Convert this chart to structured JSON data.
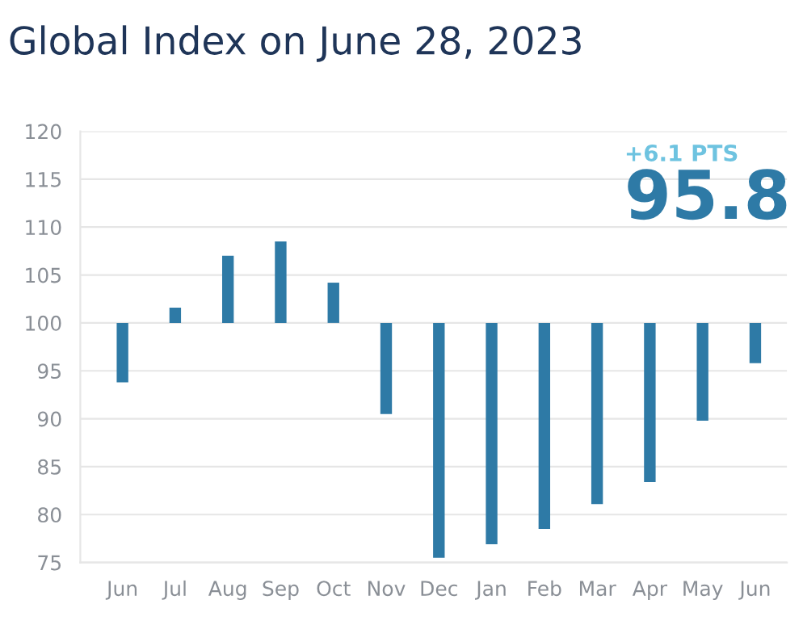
{
  "chart_data": {
    "type": "bar",
    "title": "Global Index on June 28, 2023",
    "categories": [
      "Jun",
      "Jul",
      "Aug",
      "Sep",
      "Oct",
      "Nov",
      "Dec",
      "Jan",
      "Feb",
      "Mar",
      "Apr",
      "May",
      "Jun"
    ],
    "base": [
      100,
      100,
      100,
      100,
      100,
      100,
      100,
      100,
      100,
      100,
      100,
      100,
      100
    ],
    "values": [
      -6.2,
      1.6,
      7.0,
      8.5,
      4.2,
      -9.5,
      -24.5,
      -23.1,
      -21.5,
      -18.9,
      -16.6,
      -10.2,
      -4.2
    ],
    "color": "#2e7aa6",
    "ylim": [
      75,
      120
    ],
    "yticks": [
      75,
      80,
      85,
      90,
      95,
      100,
      105,
      110,
      115,
      120
    ],
    "grid": "y",
    "annotations": [
      "+6.1 PTS",
      "95.8"
    ]
  }
}
